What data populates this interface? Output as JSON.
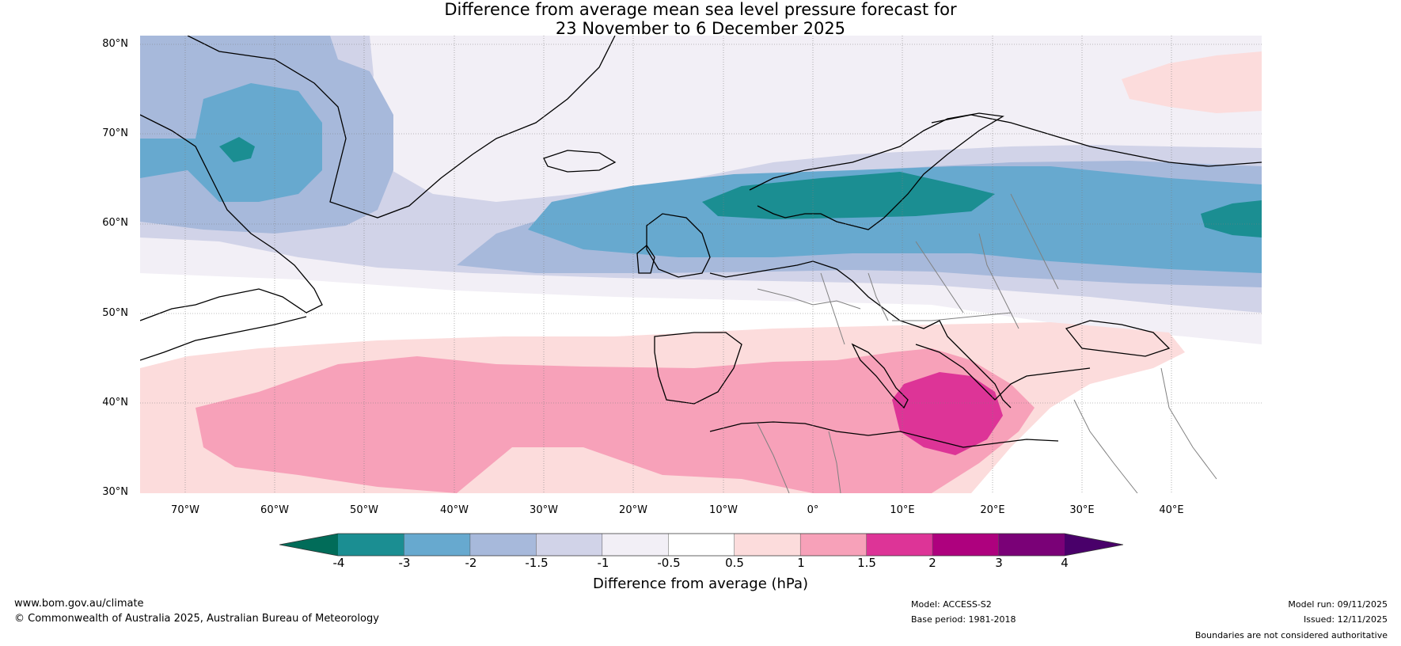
{
  "title": {
    "line1": "Difference from average mean sea level pressure forecast for",
    "line2": "23 November to 6 December 2025"
  },
  "map": {
    "lat_labels": [
      "80°N",
      "70°N",
      "60°N",
      "50°N",
      "40°N",
      "30°N"
    ],
    "lon_labels": [
      "70°W",
      "60°W",
      "50°W",
      "40°W",
      "30°W",
      "20°W",
      "10°W",
      "0°",
      "10°E",
      "20°E",
      "30°E",
      "40°E"
    ],
    "lon_range": [
      -75,
      50
    ],
    "lat_range": [
      30,
      81
    ]
  },
  "colorbar": {
    "title": "Difference from average (hPa)",
    "ticks": [
      "-4",
      "-3",
      "-2",
      "-1.5",
      "-1",
      "-0.5",
      "0.5",
      "1",
      "1.5",
      "2",
      "3",
      "4"
    ],
    "colors": [
      "#1b8e92",
      "#67a9cf",
      "#a7b9db",
      "#d1d3e8",
      "#f2eff6",
      "#ffffff",
      "#fcdcdc",
      "#f7a1b9",
      "#dd3497",
      "#ae017e",
      "#7a0177"
    ],
    "extend_low_color": "#016c59",
    "extend_high_color": "#49006a"
  },
  "footer": {
    "url": "www.bom.gov.au/climate",
    "copyright": "© Commonwealth of Australia 2025, Australian Bureau of Meteorology",
    "model": "Model: ACCESS-S2",
    "base_period": "Base period: 1981-2018",
    "model_run": "Model run: 09/11/2025",
    "issued": "Issued: 12/11/2025",
    "disclaimer": "Boundaries are not considered authoritative"
  }
}
